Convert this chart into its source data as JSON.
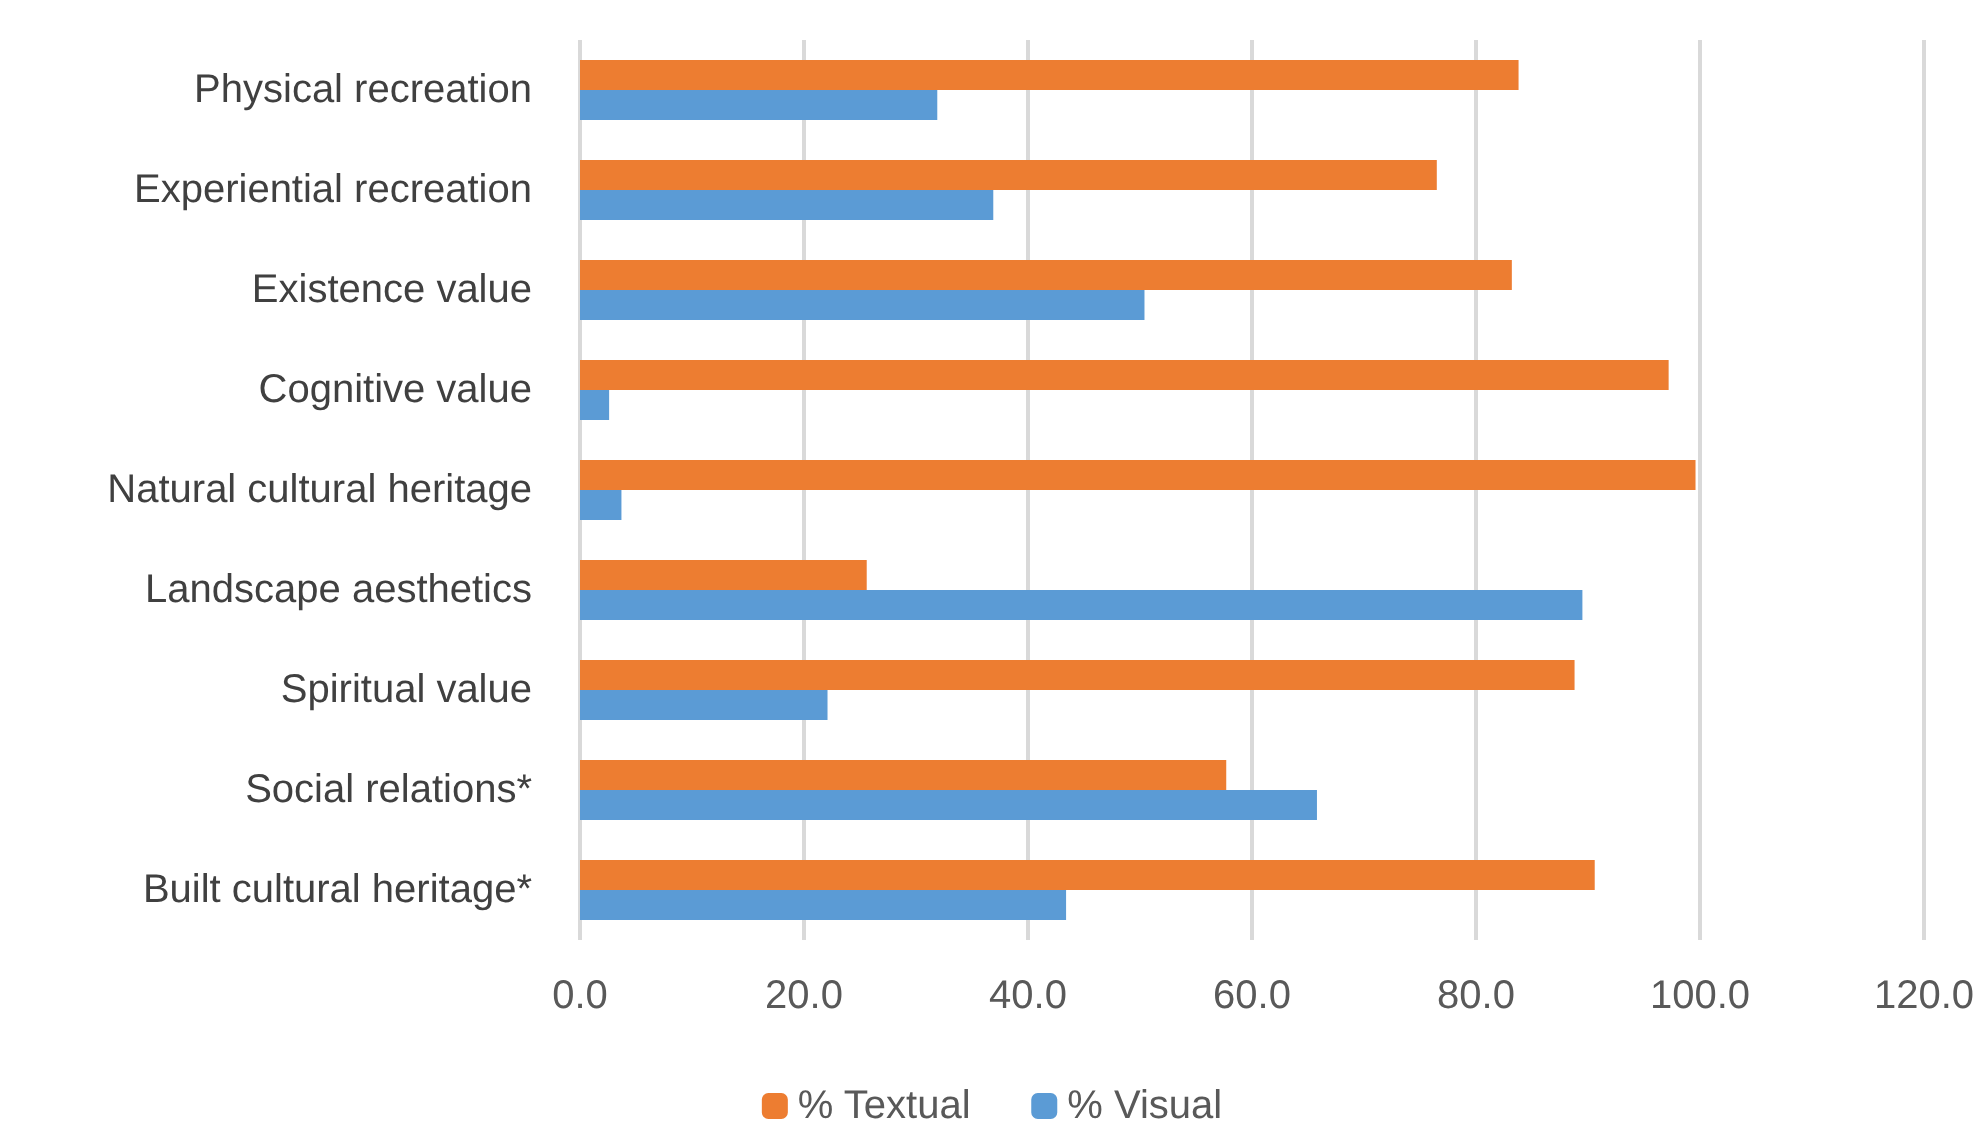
{
  "chart_data": {
    "type": "bar",
    "orientation": "horizontal",
    "categories": [
      "Physical recreation",
      "Experiential recreation",
      "Existence value",
      "Cognitive value",
      "Natural cultural heritage",
      "Landscape aesthetics",
      "Spiritual value",
      "Social relations*",
      "Built cultural heritage*"
    ],
    "series": [
      {
        "name": "% Textual",
        "color": "#ed7d31",
        "values": [
          83.8,
          76.5,
          83.2,
          97.2,
          99.6,
          25.6,
          88.8,
          57.7,
          90.6
        ]
      },
      {
        "name": "% Visual",
        "color": "#5b9bd5",
        "values": [
          31.9,
          36.9,
          50.4,
          2.6,
          3.7,
          89.5,
          22.1,
          65.8,
          43.4
        ]
      }
    ],
    "xlim": [
      0,
      120
    ],
    "xticks": [
      {
        "value": 0,
        "label": "0.0"
      },
      {
        "value": 20,
        "label": "20.0"
      },
      {
        "value": 40,
        "label": "40.0"
      },
      {
        "value": 60,
        "label": "60.0"
      },
      {
        "value": 80,
        "label": "80.0"
      },
      {
        "value": 100,
        "label": "100.0"
      },
      {
        "value": 120,
        "label": "120.0"
      }
    ],
    "grid": "x",
    "legend": "bottom"
  }
}
